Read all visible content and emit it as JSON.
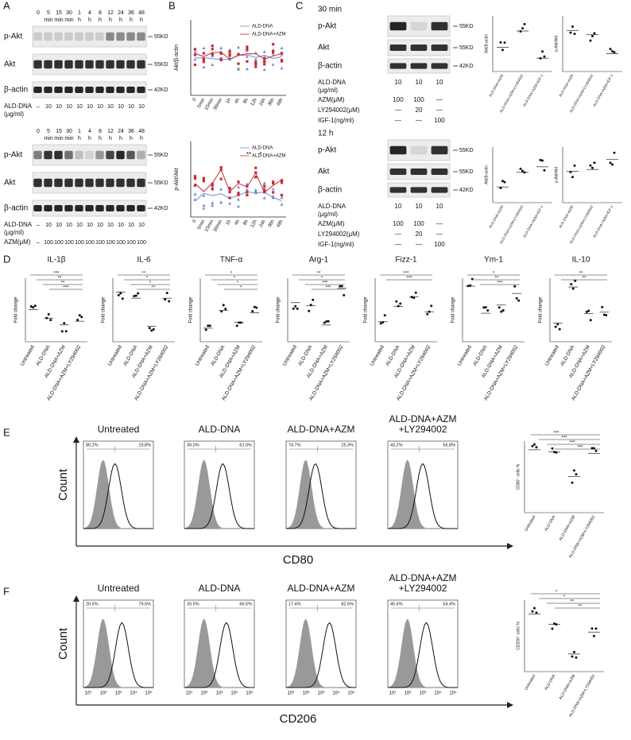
{
  "figure": {
    "A": {
      "label": "A",
      "lane_numbers": [
        0,
        5,
        15,
        30,
        1,
        4,
        8,
        12,
        24,
        36,
        48
      ],
      "lane_units": [
        null,
        "min",
        "min",
        "min",
        "h",
        "h",
        "h",
        "h",
        "h",
        "h",
        "h"
      ],
      "rows": [
        "p-Akt",
        "Akt",
        "β-actin"
      ],
      "markers": [
        "55KD",
        "55KD",
        "42KD"
      ],
      "ald_dna": [
        "ALD-DNA",
        "(μg/ml)"
      ],
      "top_ald_values": [
        "–",
        10,
        10,
        10,
        10,
        10,
        10,
        10,
        10,
        10,
        10
      ],
      "bottom_ald_values": [
        "–",
        10,
        10,
        10,
        10,
        10,
        10,
        10,
        10,
        10,
        10
      ],
      "azm": "AZM(μM)",
      "azm_values": [
        "–",
        100,
        100,
        100,
        100,
        100,
        100,
        100,
        100,
        100,
        100
      ]
    },
    "B": {
      "label": "B",
      "legend": [
        "ALD-DNA",
        "ALD-DNA+AZM"
      ],
      "ylabels": [
        "Akt/β-actin",
        "p-Akt/Akt"
      ],
      "xticks": [
        "0",
        "5min",
        "15min",
        "30min",
        "1h",
        "4h",
        "8h",
        "12h",
        "24h",
        "36h",
        "48h"
      ],
      "stars": [
        "**",
        "*"
      ]
    },
    "C": {
      "label": "C",
      "times": [
        "30 min",
        "12 h"
      ],
      "rows": [
        "p-Akt",
        "Akt",
        "β-actin"
      ],
      "markers": [
        "55KD",
        "55KD",
        "42KD"
      ],
      "treatments": [
        {
          "name": [
            "ALD-DNA",
            "(μg/ml)"
          ],
          "values": [
            10,
            10,
            10
          ]
        },
        {
          "name": [
            "AZM(μM)"
          ],
          "values": [
            100,
            100,
            "—"
          ]
        },
        {
          "name": [
            "LY294002(μM)"
          ],
          "values": [
            "—",
            20,
            "—"
          ]
        },
        {
          "name": [
            "IGF-1(ng/ml)"
          ],
          "values": [
            "—",
            "—",
            100
          ]
        }
      ],
      "plot_groups": [
        "ALD-DNA+AZM",
        "ALD-DNA+AZM+LY294002",
        "ALD-DNA+AZM+IGF-1"
      ],
      "plot_ylabels": [
        "Akt/β-actin",
        "p-Akt/Akt"
      ]
    },
    "D": {
      "label": "D",
      "cytokines": [
        "IL-1β",
        "IL-6",
        "TNF-α",
        "Arg-1",
        "Fizz-1",
        "Ym-1",
        "IL-10"
      ],
      "ylabel": "Fold change",
      "groups": [
        "Untreated",
        "ALD-DNA",
        "ALD-DNA+AZM",
        "ALD-DNA+AZM+LY294002"
      ],
      "stars": [
        [
          "***",
          "**",
          "**",
          "***"
        ],
        [
          "**",
          "*",
          "*",
          "**"
        ],
        [
          "*",
          "*",
          "*",
          "*"
        ],
        [
          "**",
          "*",
          "***",
          "***"
        ],
        [
          "***",
          "***"
        ],
        [
          "*",
          "**",
          "***"
        ],
        [
          "**",
          "**"
        ]
      ]
    },
    "E": {
      "label": "E",
      "count": "Count",
      "marker": "CD80",
      "titles": [
        [
          "Untreated"
        ],
        [
          "ALD-DNA"
        ],
        [
          "ALD-DNA+AZM"
        ],
        [
          "ALD-DNA+AZM",
          "+LY294002"
        ]
      ],
      "percents": [
        [
          "80.2%",
          "19.8%"
        ],
        [
          "39.0%",
          "61.0%"
        ],
        [
          "74.7%",
          "25.3%"
        ],
        [
          "43.2%",
          "56.8%"
        ]
      ],
      "ylabel": "CD80⁺ cells %",
      "stars": [
        "***",
        "***",
        "***",
        "***"
      ]
    },
    "F": {
      "label": "F",
      "marker": "CD206",
      "percents": [
        [
          "20.5%",
          "79.5%"
        ],
        [
          "33.5%",
          "66.5%"
        ],
        [
          "17.4%",
          "82.6%"
        ],
        [
          "45.6%",
          "54.4%"
        ]
      ],
      "ylabel": "CD206⁺ cells %",
      "axis_ticks": [
        "10¹",
        "10²",
        "10³",
        "10⁴",
        "10⁵"
      ],
      "stars": [
        "*",
        "*",
        "**",
        "**"
      ]
    }
  }
}
